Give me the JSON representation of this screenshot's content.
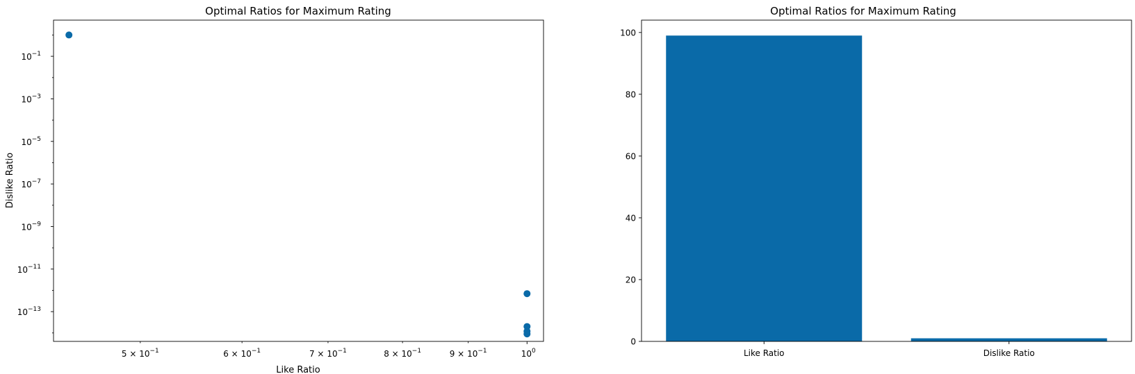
{
  "chart_data": [
    {
      "type": "scatter",
      "title": "Optimal Ratios for Maximum Rating",
      "xlabel": "Like Ratio",
      "ylabel": "Dislike Ratio",
      "xscale": "log",
      "yscale": "log",
      "xlim": [
        0.428,
        1.03
      ],
      "ylim": [
        4e-15,
        5
      ],
      "x_major_ticks": [
        {
          "value": 1,
          "label_base": "10",
          "label_exp": "0",
          "label_prefix": ""
        }
      ],
      "x_minor_ticks": [
        {
          "value": 0.5,
          "label_prefix": "5 × ",
          "label_base": "10",
          "label_exp": "−1"
        },
        {
          "value": 0.6,
          "label_prefix": "6 × ",
          "label_base": "10",
          "label_exp": "−1"
        },
        {
          "value": 0.7,
          "label_prefix": "7 × ",
          "label_base": "10",
          "label_exp": "−1"
        },
        {
          "value": 0.8,
          "label_prefix": "8 × ",
          "label_base": "10",
          "label_exp": "−1"
        },
        {
          "value": 0.9,
          "label_prefix": "9 × ",
          "label_base": "10",
          "label_exp": "−1"
        }
      ],
      "y_ticks": [
        {
          "value": 1e-13,
          "label_base": "10",
          "label_exp": "−13"
        },
        {
          "value": 1e-11,
          "label_base": "10",
          "label_exp": "−11"
        },
        {
          "value": 1e-09,
          "label_base": "10",
          "label_exp": "−9"
        },
        {
          "value": 1e-07,
          "label_base": "10",
          "label_exp": "−7"
        },
        {
          "value": 1e-05,
          "label_base": "10",
          "label_exp": "−5"
        },
        {
          "value": 0.001,
          "label_base": "10",
          "label_exp": "−3"
        },
        {
          "value": 0.1,
          "label_base": "10",
          "label_exp": "−1"
        }
      ],
      "points": [
        {
          "x": 0.44,
          "y": 1.0
        },
        {
          "x": 1.0,
          "y": 7e-13
        },
        {
          "x": 1.0,
          "y": 2e-14
        },
        {
          "x": 1.0,
          "y": 1.2e-14
        },
        {
          "x": 1.0,
          "y": 9e-15
        }
      ],
      "color": "#0a6aa8"
    },
    {
      "type": "bar",
      "title": "Optimal Ratios for Maximum Rating",
      "categories": [
        "Like Ratio",
        "Dislike Ratio"
      ],
      "values": [
        99,
        1
      ],
      "ylim": [
        0,
        104
      ],
      "y_ticks": [
        0,
        20,
        40,
        60,
        80,
        100
      ],
      "color": "#0a6aa8"
    }
  ]
}
